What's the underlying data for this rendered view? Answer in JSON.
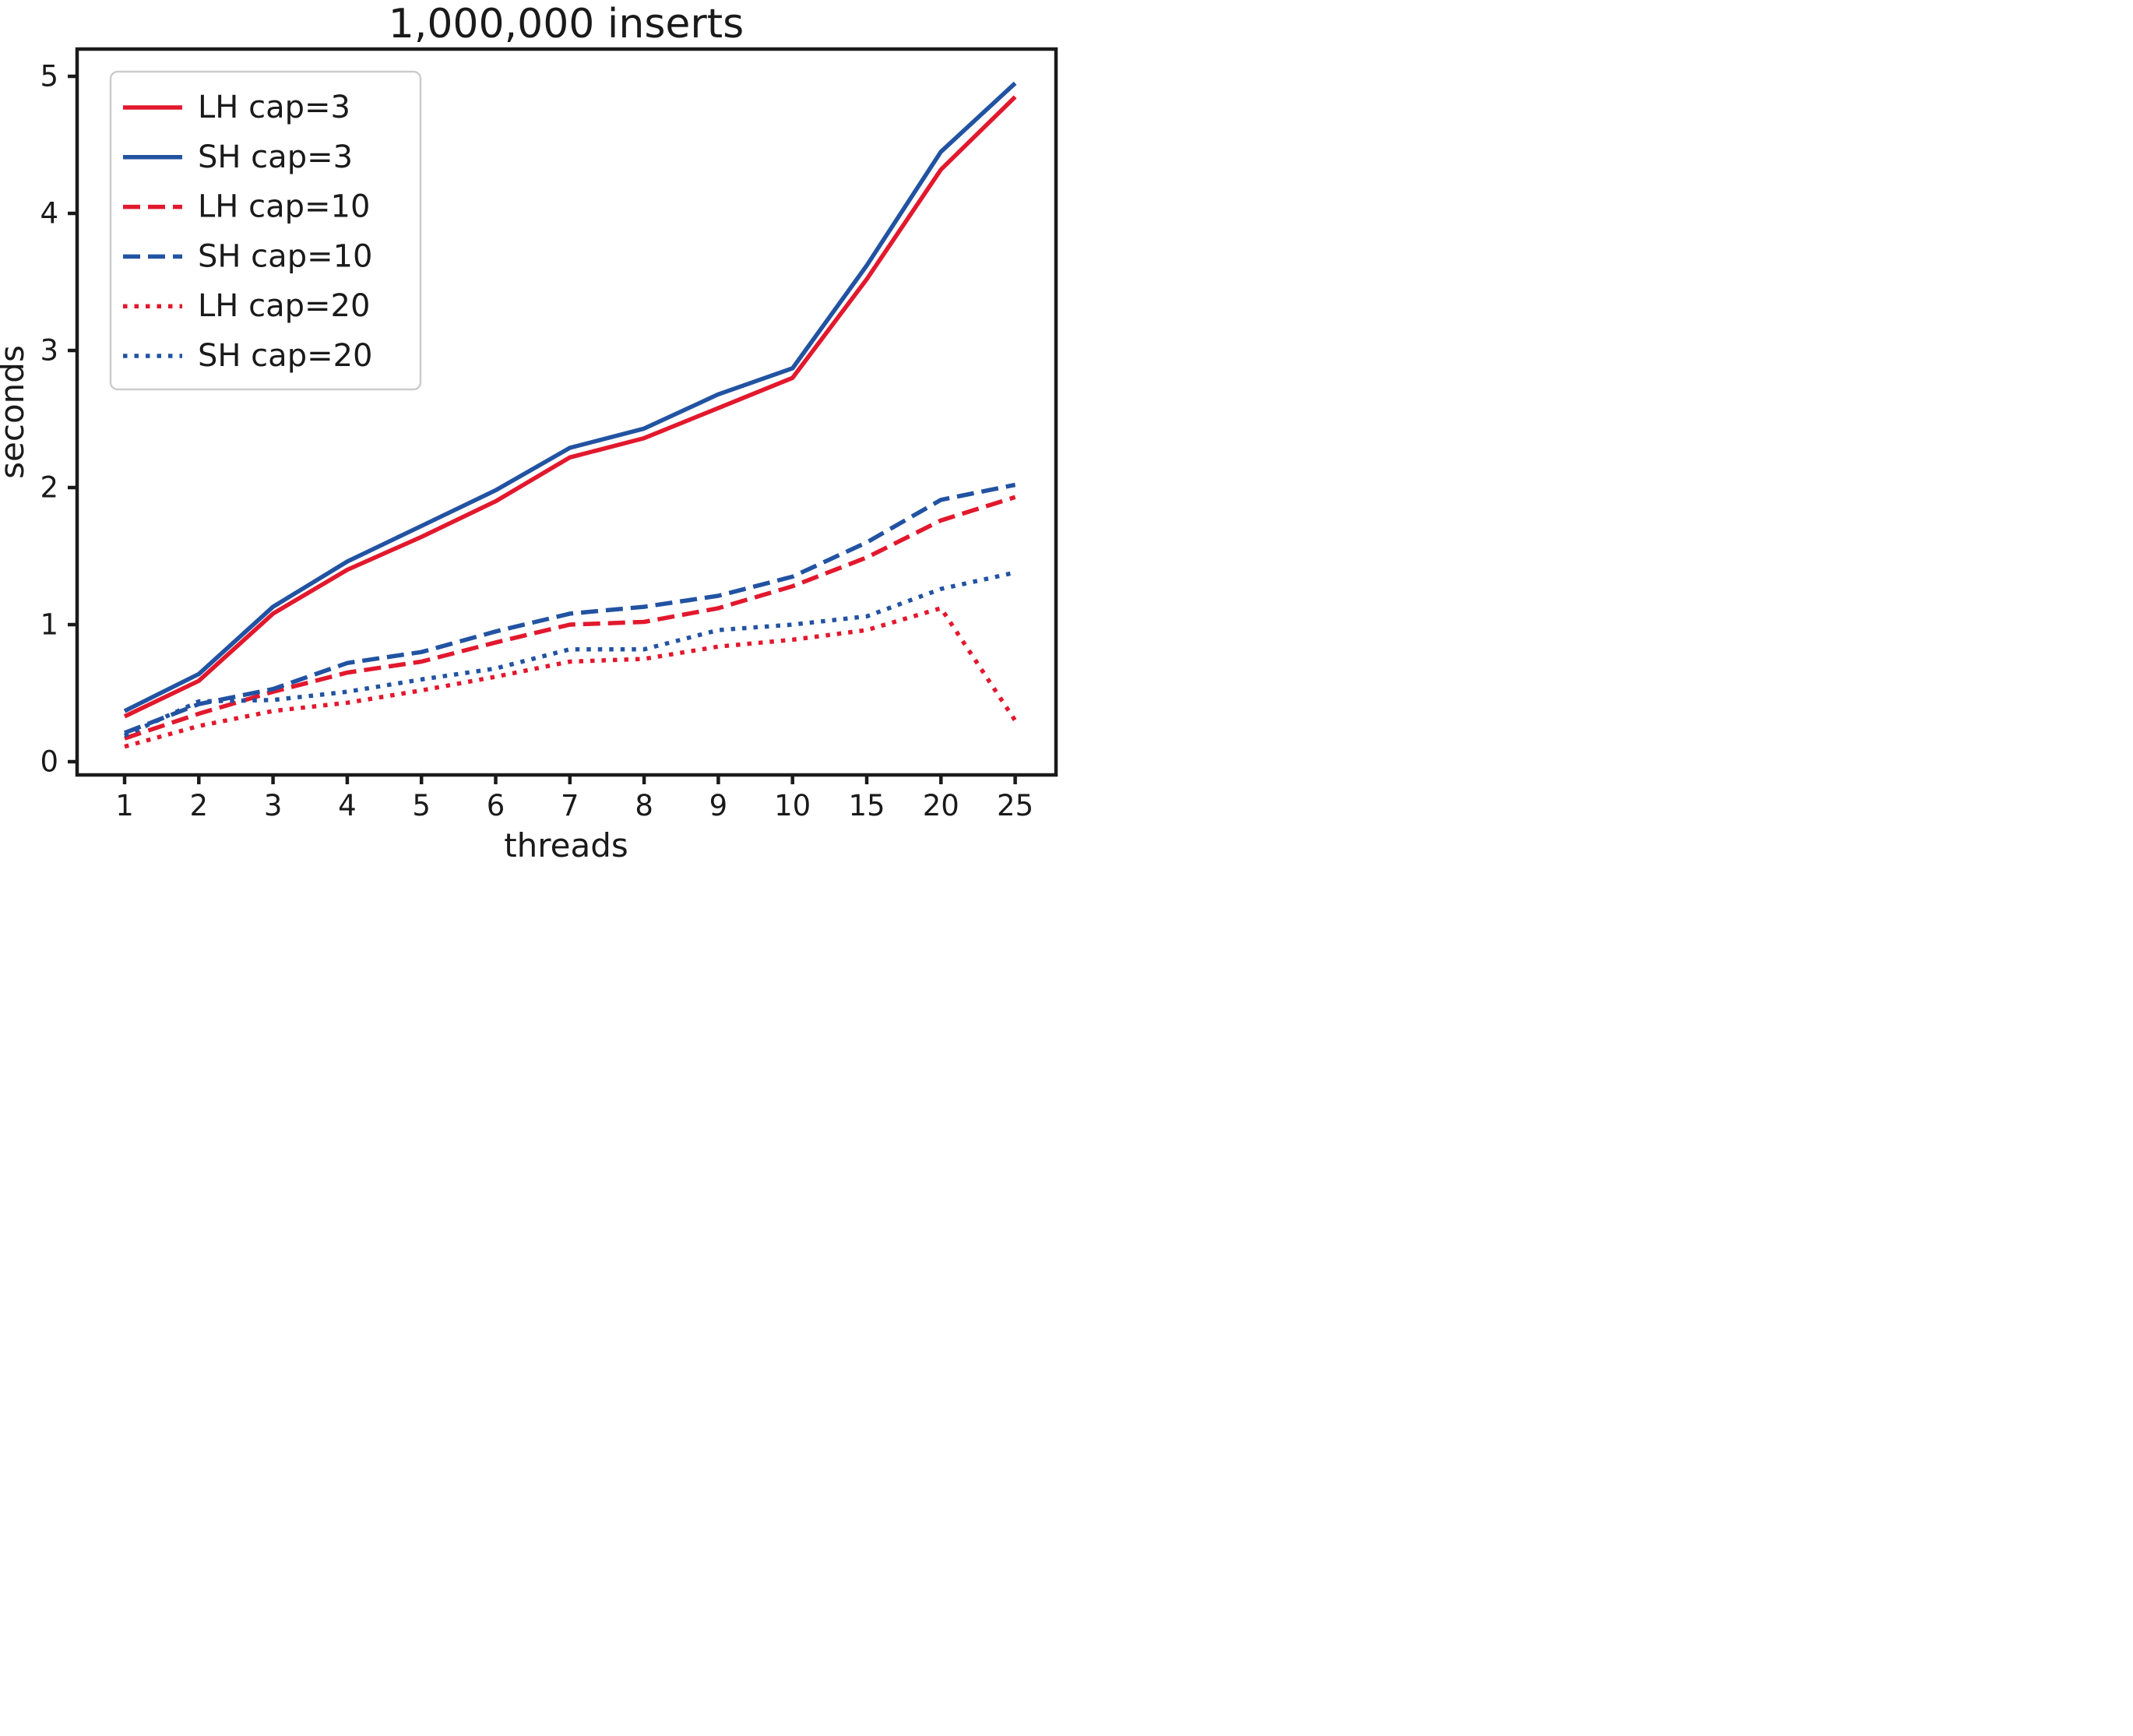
{
  "chart_data": {
    "type": "line",
    "title": "1,000,000 inserts",
    "xlabel": "threads",
    "ylabel": "seconds",
    "x_tick_labels": [
      "1",
      "2",
      "3",
      "4",
      "5",
      "6",
      "7",
      "8",
      "9",
      "10",
      "15",
      "20",
      "25"
    ],
    "y_ticks": [
      "0",
      "1",
      "2",
      "3",
      "4",
      "5"
    ],
    "ylim": [
      -0.1,
      5.2
    ],
    "grid": false,
    "legend_position": "upper left",
    "colors": {
      "red": "#e2182d",
      "blue": "#2253a2"
    },
    "series": [
      {
        "name": "LH cap=3",
        "color": "red",
        "style": "solid",
        "values": [
          0.33,
          0.59,
          1.08,
          1.4,
          1.64,
          1.9,
          2.22,
          2.36,
          2.58,
          2.8,
          3.52,
          4.32,
          4.85
        ]
      },
      {
        "name": "SH cap=3",
        "color": "blue",
        "style": "solid",
        "values": [
          0.37,
          0.64,
          1.13,
          1.46,
          1.72,
          1.98,
          2.29,
          2.43,
          2.68,
          2.87,
          3.62,
          4.45,
          4.95
        ]
      },
      {
        "name": "LH cap=10",
        "color": "red",
        "style": "dashed",
        "values": [
          0.17,
          0.35,
          0.51,
          0.65,
          0.73,
          0.87,
          1.0,
          1.02,
          1.12,
          1.28,
          1.49,
          1.76,
          1.93
        ]
      },
      {
        "name": "SH cap=10",
        "color": "blue",
        "style": "dashed",
        "values": [
          0.21,
          0.42,
          0.53,
          0.72,
          0.8,
          0.95,
          1.08,
          1.13,
          1.21,
          1.35,
          1.6,
          1.91,
          2.02
        ]
      },
      {
        "name": "LH cap=20",
        "color": "red",
        "style": "dotted",
        "values": [
          0.11,
          0.26,
          0.37,
          0.43,
          0.52,
          0.62,
          0.73,
          0.75,
          0.84,
          0.89,
          0.96,
          1.12,
          0.3
        ]
      },
      {
        "name": "SH cap=20",
        "color": "blue",
        "style": "dotted",
        "values": [
          0.19,
          0.44,
          0.45,
          0.51,
          0.6,
          0.68,
          0.82,
          0.82,
          0.96,
          1.0,
          1.06,
          1.26,
          1.38
        ]
      }
    ]
  }
}
